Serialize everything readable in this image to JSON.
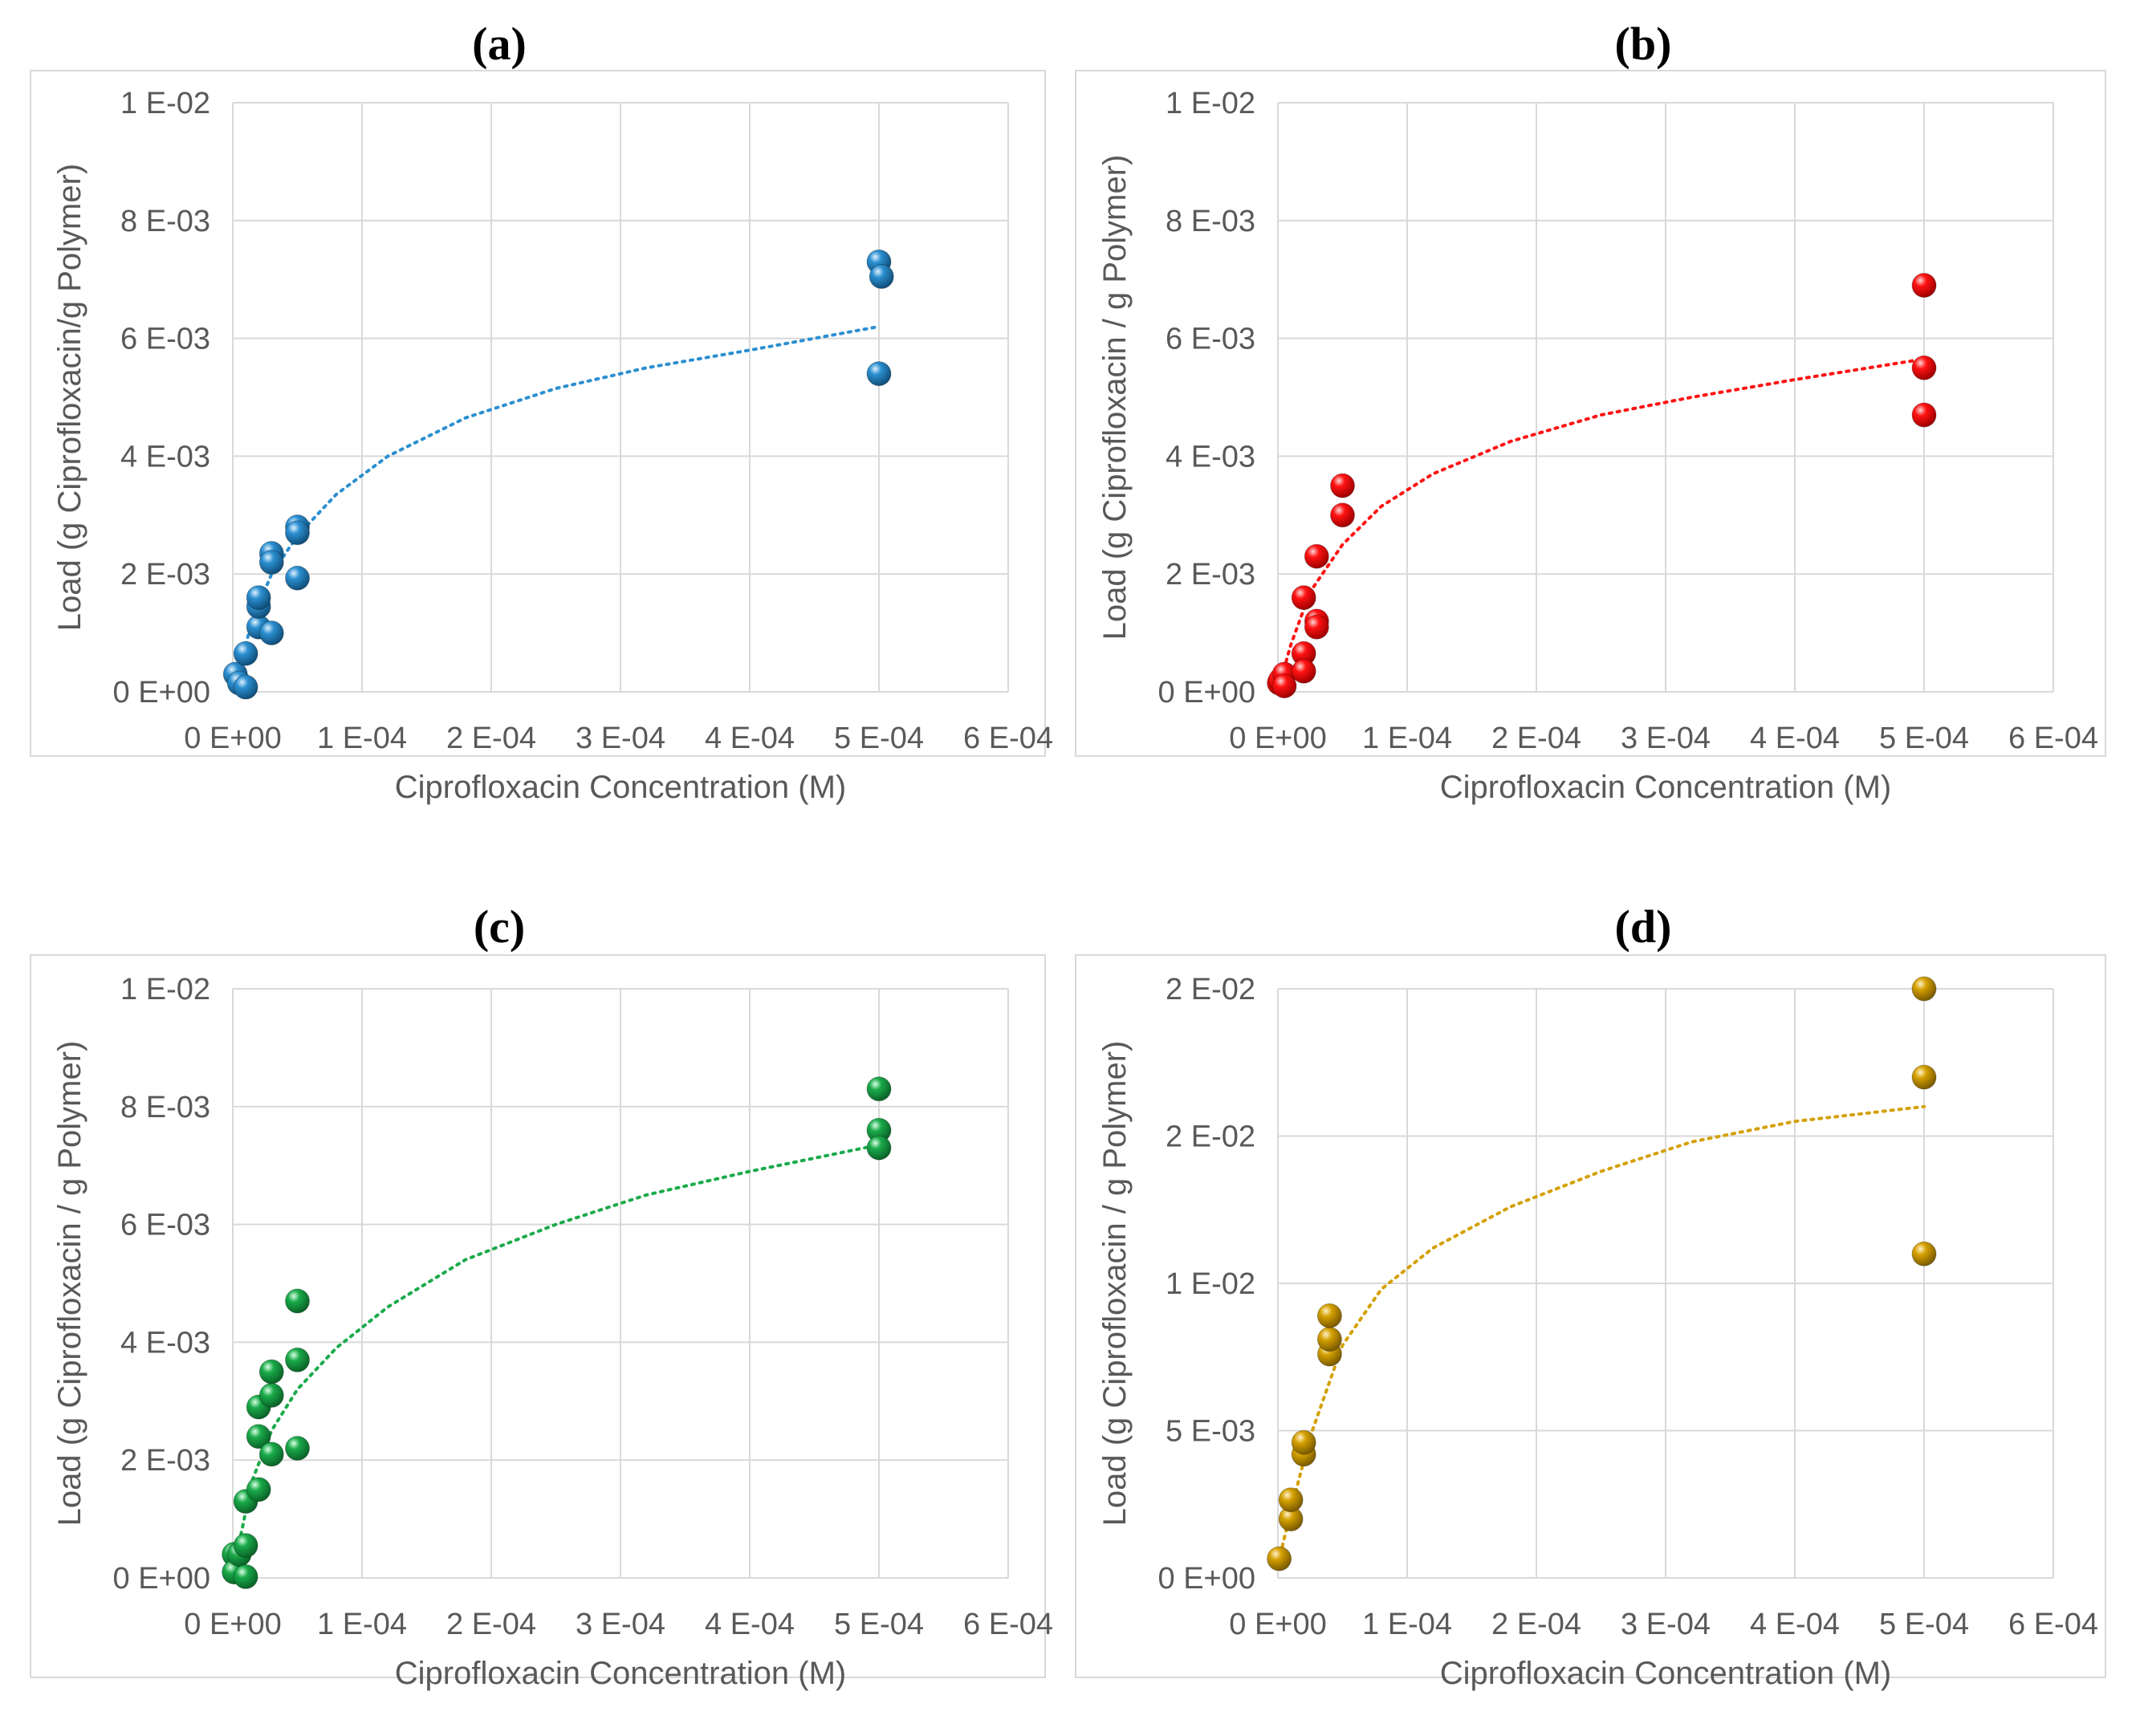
{
  "chart_data": [
    {
      "type": "scatter",
      "panel_label": "(a)",
      "xlabel": "Ciprofloxacin Concentration (M)",
      "ylabel": "Load (g Ciprofloxacin/g Polymer)",
      "xlim": [
        0,
        0.0006
      ],
      "ylim": [
        0,
        0.01
      ],
      "x_ticks": [
        "0 E+00",
        "1 E-04",
        "2 E-04",
        "3 E-04",
        "4 E-04",
        "5 E-04",
        "6 E-04"
      ],
      "y_ticks": [
        "0 E+00",
        "2 E-03",
        "4 E-03",
        "6 E-03",
        "8 E-03",
        "1 E-02"
      ],
      "grid": true,
      "color": "#2b8fd0",
      "trendline": true,
      "points": [
        [
          2e-06,
          0.0003
        ],
        [
          5e-06,
          0.00015
        ],
        [
          1e-05,
          8e-05
        ],
        [
          1e-05,
          0.00065
        ],
        [
          2e-05,
          0.0011
        ],
        [
          2e-05,
          0.00145
        ],
        [
          2e-05,
          0.0016
        ],
        [
          3e-05,
          0.00235
        ],
        [
          3e-05,
          0.0022
        ],
        [
          3e-05,
          0.001
        ],
        [
          5e-05,
          0.0028
        ],
        [
          5e-05,
          0.0027
        ],
        [
          5e-05,
          0.00193
        ],
        [
          0.0005,
          0.0073
        ],
        [
          0.000502,
          0.00705
        ],
        [
          0.0005,
          0.0054
        ]
      ],
      "trend_points": [
        [
          5e-06,
          0.0004
        ],
        [
          1.5e-05,
          0.0012
        ],
        [
          3e-05,
          0.002
        ],
        [
          5e-05,
          0.00265
        ],
        [
          8e-05,
          0.00335
        ],
        [
          0.00012,
          0.004
        ],
        [
          0.00018,
          0.00465
        ],
        [
          0.00025,
          0.00515
        ],
        [
          0.00032,
          0.0055
        ],
        [
          0.0004,
          0.0058
        ],
        [
          0.0005,
          0.0062
        ]
      ]
    },
    {
      "type": "scatter",
      "panel_label": "(b)",
      "xlabel": "Ciprofloxacin Concentration (M)",
      "ylabel": "Load (g Ciprofloxacin / g Polymer)",
      "xlim": [
        0,
        0.0006
      ],
      "ylim": [
        0,
        0.01
      ],
      "x_ticks": [
        "0 E+00",
        "1 E-04",
        "2 E-04",
        "3 E-04",
        "4 E-04",
        "5 E-04",
        "6 E-04"
      ],
      "y_ticks": [
        "0 E+00",
        "2 E-03",
        "4 E-03",
        "6 E-03",
        "8 E-03",
        "1 E-02"
      ],
      "grid": true,
      "color": "#ff1212",
      "trendline": true,
      "points": [
        [
          1e-06,
          0.00015
        ],
        [
          2e-06,
          0.0002
        ],
        [
          5e-06,
          0.0003
        ],
        [
          5e-06,
          0.0001
        ],
        [
          2e-05,
          0.0016
        ],
        [
          2e-05,
          0.00065
        ],
        [
          2e-05,
          0.00035
        ],
        [
          3e-05,
          0.0023
        ],
        [
          3e-05,
          0.0012
        ],
        [
          3e-05,
          0.0011
        ],
        [
          5e-05,
          0.0035
        ],
        [
          5e-05,
          0.003
        ],
        [
          0.0005,
          0.0069
        ],
        [
          0.0005,
          0.0055
        ],
        [
          0.0005,
          0.0047
        ]
      ],
      "trend_points": [
        [
          3e-06,
          0.00025
        ],
        [
          1e-05,
          0.0008
        ],
        [
          2.5e-05,
          0.0017
        ],
        [
          5e-05,
          0.0025
        ],
        [
          8e-05,
          0.00315
        ],
        [
          0.00012,
          0.0037
        ],
        [
          0.00018,
          0.00425
        ],
        [
          0.00025,
          0.0047
        ],
        [
          0.00032,
          0.005
        ],
        [
          0.0004,
          0.0053
        ],
        [
          0.0005,
          0.00565
        ]
      ]
    },
    {
      "type": "scatter",
      "panel_label": "(c)",
      "xlabel": "Ciprofloxacin Concentration (M)",
      "ylabel": "Load (g Ciprofloxacin / g Polymer)",
      "xlim": [
        0,
        0.0006
      ],
      "ylim": [
        0,
        0.01
      ],
      "x_ticks": [
        "0 E+00",
        "1 E-04",
        "2 E-04",
        "3 E-04",
        "4 E-04",
        "5 E-04",
        "6 E-04"
      ],
      "y_ticks": [
        "0 E+00",
        "2 E-03",
        "4 E-03",
        "6 E-03",
        "8 E-03",
        "1 E-02"
      ],
      "grid": true,
      "color": "#1aaa4a",
      "trendline": true,
      "points": [
        [
          1e-06,
          0.0004
        ],
        [
          1e-06,
          0.0001
        ],
        [
          5e-06,
          0.0004
        ],
        [
          1e-05,
          0.00055
        ],
        [
          1e-05,
          2e-05
        ],
        [
          1e-05,
          0.0013
        ],
        [
          2e-05,
          0.0015
        ],
        [
          2e-05,
          0.0024
        ],
        [
          2e-05,
          0.0029
        ],
        [
          3e-05,
          0.0031
        ],
        [
          3e-05,
          0.0035
        ],
        [
          3e-05,
          0.0021
        ],
        [
          5e-05,
          0.0047
        ],
        [
          5e-05,
          0.0037
        ],
        [
          5e-05,
          0.0022
        ],
        [
          0.0005,
          0.0083
        ],
        [
          0.0005,
          0.0076
        ],
        [
          0.0005,
          0.0073
        ]
      ],
      "trend_points": [
        [
          5e-06,
          0.0006
        ],
        [
          1.5e-05,
          0.00165
        ],
        [
          3e-05,
          0.0025
        ],
        [
          5e-05,
          0.0032
        ],
        [
          8e-05,
          0.0039
        ],
        [
          0.00012,
          0.0046
        ],
        [
          0.00018,
          0.0054
        ],
        [
          0.00025,
          0.006
        ],
        [
          0.00032,
          0.0065
        ],
        [
          0.0004,
          0.0069
        ],
        [
          0.0005,
          0.00735
        ]
      ]
    },
    {
      "type": "scatter",
      "panel_label": "(d)",
      "xlabel": "Ciprofloxacin Concentration (M)",
      "ylabel": "Load (g Ciprofloxacin / g Polymer)",
      "xlim": [
        0,
        0.0006
      ],
      "ylim": [
        0,
        0.02
      ],
      "x_ticks": [
        "0 E+00",
        "1 E-04",
        "2 E-04",
        "3 E-04",
        "4 E-04",
        "5 E-04",
        "6 E-04"
      ],
      "y_ticks": [
        "0 E+00",
        "5 E-03",
        "1 E-02",
        "2 E-02",
        "2 E-02"
      ],
      "grid": true,
      "color": "#d4a000",
      "trendline": true,
      "points": [
        [
          1e-06,
          0.00065
        ],
        [
          1e-05,
          0.002
        ],
        [
          1e-05,
          0.00265
        ],
        [
          2e-05,
          0.0042
        ],
        [
          2e-05,
          0.0046
        ],
        [
          4e-05,
          0.0076
        ],
        [
          4e-05,
          0.0081
        ],
        [
          4e-05,
          0.0089
        ],
        [
          0.0005,
          0.02
        ],
        [
          0.0005,
          0.017
        ],
        [
          0.0005,
          0.011
        ]
      ],
      "trend_points": [
        [
          2e-06,
          0.0008
        ],
        [
          1e-05,
          0.0023
        ],
        [
          2.5e-05,
          0.0048
        ],
        [
          5e-05,
          0.0079
        ],
        [
          8e-05,
          0.0098
        ],
        [
          0.00012,
          0.0112
        ],
        [
          0.00018,
          0.0126
        ],
        [
          0.00025,
          0.0138
        ],
        [
          0.00032,
          0.0148
        ],
        [
          0.0004,
          0.0155
        ],
        [
          0.0005,
          0.016
        ]
      ]
    }
  ]
}
